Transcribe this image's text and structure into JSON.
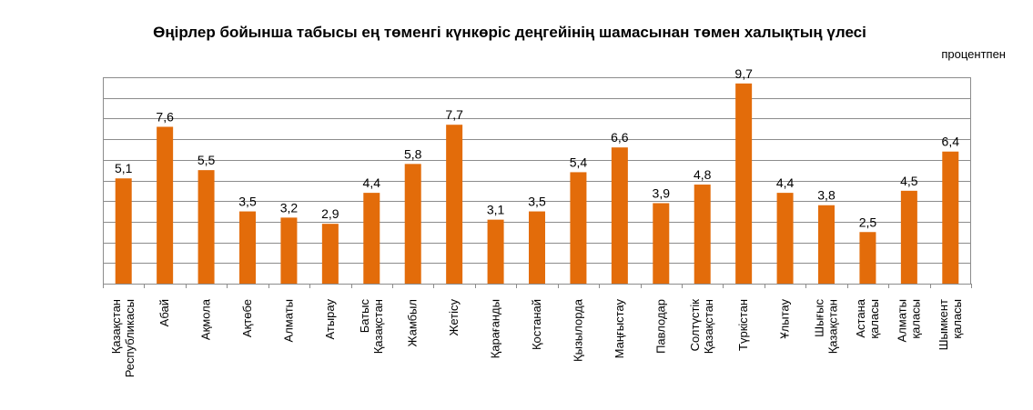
{
  "chart_data": {
    "type": "bar",
    "title": "Өңірлер бойынша табысы ең төменгі күнкөріс деңгейінің шамасынан төмен халықтың үлесі",
    "subtitle": "процентпен",
    "xlabel": "",
    "ylabel": "",
    "ylim": [
      0,
      10
    ],
    "grid": true,
    "bar_color": "#E36C0A",
    "categories": [
      [
        "Қазақстан",
        "Республикасы"
      ],
      [
        "Абай"
      ],
      [
        "Ақмола"
      ],
      [
        "Ақтөбе"
      ],
      [
        "Алматы"
      ],
      [
        "Атырау"
      ],
      [
        "Батыс",
        "Қазақстан"
      ],
      [
        "Жамбыл"
      ],
      [
        "Жетісу"
      ],
      [
        "Қарағанды"
      ],
      [
        "Қостанай"
      ],
      [
        "Қызылорда"
      ],
      [
        "Маңғыстау"
      ],
      [
        "Павлодар"
      ],
      [
        "Солтүстік",
        "Қазақстан"
      ],
      [
        "Түркістан"
      ],
      [
        "Ұлытау"
      ],
      [
        "Шығыс",
        "Қазақстан"
      ],
      [
        "Астана",
        "қаласы"
      ],
      [
        "Алматы",
        "қаласы"
      ],
      [
        "Шымкент",
        "қаласы"
      ]
    ],
    "values": [
      5.1,
      7.6,
      5.5,
      3.5,
      3.2,
      2.9,
      4.4,
      5.8,
      7.7,
      3.1,
      3.5,
      5.4,
      6.6,
      3.9,
      4.8,
      9.7,
      4.4,
      3.8,
      2.5,
      4.5,
      6.4
    ],
    "value_labels": [
      "5,1",
      "7,6",
      "5,5",
      "3,5",
      "3,2",
      "2,9",
      "4,4",
      "5,8",
      "7,7",
      "3,1",
      "3,5",
      "5,4",
      "6,6",
      "3,9",
      "4,8",
      "9,7",
      "4,4",
      "3,8",
      "2,5",
      "4,5",
      "6,4"
    ]
  }
}
